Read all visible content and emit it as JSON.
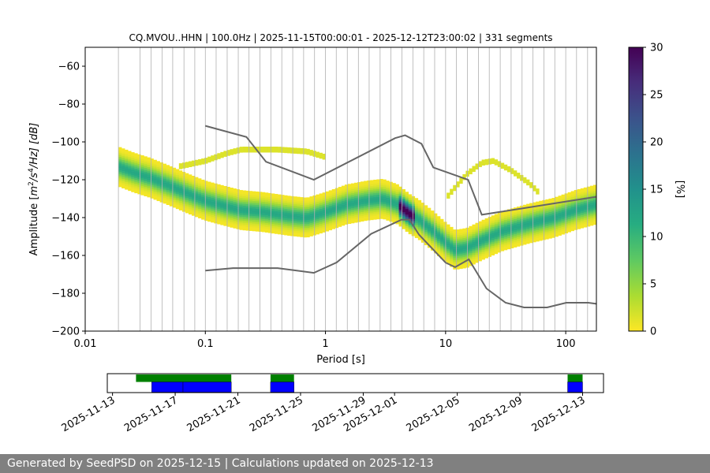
{
  "chart_data": [
    {
      "type": "heatmap",
      "title": "CQ.MVOU..HHN | 100.0Hz | 2025-11-15T00:00:01 - 2025-12-12T23:00:02 | 331 segments",
      "xlabel": "Period [s]",
      "ylabel_parts": {
        "prefix": "Amplitude [",
        "m": "m",
        "exp1": "2",
        "mid": "/s",
        "exp2": "4",
        "suffix": "/Hz] [dB]"
      },
      "xscale": "log",
      "xlim": [
        0.01,
        180
      ],
      "ylim": [
        -200,
        -50
      ],
      "x_ticks": [
        0.01,
        0.1,
        1,
        10,
        100
      ],
      "x_tick_labels": [
        "0.01",
        "0.1",
        "1",
        "10",
        "100"
      ],
      "y_ticks": [
        -200,
        -180,
        -160,
        -140,
        -120,
        -100,
        -80,
        -60
      ],
      "y_tick_labels": [
        "−200",
        "−180",
        "−160",
        "−140",
        "−120",
        "−100",
        "−80",
        "−60"
      ],
      "grid": "vertical lines at period bins",
      "grid_x": [
        0.0189,
        0.0286,
        0.0354,
        0.0436,
        0.0535,
        0.0664,
        0.0817,
        0.1,
        0.123,
        0.152,
        0.188,
        0.231,
        0.285,
        0.351,
        0.433,
        0.534,
        0.658,
        0.811,
        1.0,
        1.23,
        1.52,
        1.88,
        2.31,
        2.85,
        3.51,
        4.33,
        5.34,
        6.58,
        8.11,
        10,
        12.3,
        15.2,
        18.8,
        23.1,
        28.5,
        35.1,
        43.3,
        53.4,
        65.8,
        81.1,
        100,
        123,
        152
      ],
      "colorbar": {
        "label": "[%]",
        "min": 0,
        "max": 30,
        "ticks": [
          0,
          5,
          10,
          15,
          20,
          25,
          30
        ],
        "tick_labels": [
          "0",
          "5",
          "10",
          "15",
          "20",
          "25",
          "30"
        ],
        "colormap": "viridis"
      },
      "density": {
        "median": [
          {
            "x": 0.019,
            "y": -113
          },
          {
            "x": 0.025,
            "y": -116
          },
          {
            "x": 0.035,
            "y": -119
          },
          {
            "x": 0.05,
            "y": -123
          },
          {
            "x": 0.07,
            "y": -127
          },
          {
            "x": 0.1,
            "y": -131
          },
          {
            "x": 0.15,
            "y": -134
          },
          {
            "x": 0.2,
            "y": -136
          },
          {
            "x": 0.3,
            "y": -137
          },
          {
            "x": 0.5,
            "y": -139
          },
          {
            "x": 0.7,
            "y": -140
          },
          {
            "x": 1.0,
            "y": -137
          },
          {
            "x": 1.5,
            "y": -133
          },
          {
            "x": 2.2,
            "y": -131
          },
          {
            "x": 3.0,
            "y": -130
          },
          {
            "x": 4.0,
            "y": -133
          },
          {
            "x": 5.0,
            "y": -138
          },
          {
            "x": 6.0,
            "y": -141
          },
          {
            "x": 7.5,
            "y": -146
          },
          {
            "x": 10,
            "y": -153
          },
          {
            "x": 12,
            "y": -157
          },
          {
            "x": 15,
            "y": -156
          },
          {
            "x": 20,
            "y": -152
          },
          {
            "x": 30,
            "y": -147
          },
          {
            "x": 50,
            "y": -143
          },
          {
            "x": 80,
            "y": -140
          },
          {
            "x": 120,
            "y": -136
          },
          {
            "x": 180,
            "y": -133
          }
        ],
        "spread_below": 9,
        "spread_above": 9,
        "upper_branch": [
          {
            "x": 0.06,
            "y": -113
          },
          {
            "x": 0.1,
            "y": -110
          },
          {
            "x": 0.15,
            "y": -106
          },
          {
            "x": 0.2,
            "y": -104
          },
          {
            "x": 0.4,
            "y": -104
          },
          {
            "x": 0.7,
            "y": -105
          },
          {
            "x": 1.0,
            "y": -108
          }
        ],
        "upper_branch_2": [
          {
            "x": 10,
            "y": -130
          },
          {
            "x": 12,
            "y": -124
          },
          {
            "x": 15,
            "y": -117
          },
          {
            "x": 20,
            "y": -111
          },
          {
            "x": 25,
            "y": -110
          },
          {
            "x": 35,
            "y": -115
          },
          {
            "x": 50,
            "y": -122
          },
          {
            "x": 60,
            "y": -127
          }
        ],
        "peak": {
          "x": 4.7,
          "y": -137
        }
      },
      "reference_models": {
        "color": "#666666",
        "high_noise": [
          {
            "x": 0.1,
            "y": -91.5
          },
          {
            "x": 0.22,
            "y": -97.4
          },
          {
            "x": 0.32,
            "y": -110.5
          },
          {
            "x": 0.8,
            "y": -120
          },
          {
            "x": 3.8,
            "y": -98
          },
          {
            "x": 4.6,
            "y": -96.5
          },
          {
            "x": 6.3,
            "y": -101
          },
          {
            "x": 7.9,
            "y": -113.5
          },
          {
            "x": 15.4,
            "y": -120
          },
          {
            "x": 20,
            "y": -138.5
          },
          {
            "x": 180,
            "y": -129
          }
        ],
        "low_noise": [
          {
            "x": 0.1,
            "y": -168
          },
          {
            "x": 0.17,
            "y": -166.7
          },
          {
            "x": 0.4,
            "y": -166.7
          },
          {
            "x": 0.8,
            "y": -169.2
          },
          {
            "x": 1.24,
            "y": -163.7
          },
          {
            "x": 2.4,
            "y": -148.6
          },
          {
            "x": 4.3,
            "y": -141.1
          },
          {
            "x": 5.0,
            "y": -141.1
          },
          {
            "x": 6.0,
            "y": -149
          },
          {
            "x": 10,
            "y": -163.8
          },
          {
            "x": 12,
            "y": -166.2
          },
          {
            "x": 15.6,
            "y": -162.1
          },
          {
            "x": 21.9,
            "y": -177.5
          },
          {
            "x": 31.6,
            "y": -185
          },
          {
            "x": 45,
            "y": -187.5
          },
          {
            "x": 70,
            "y": -187.5
          },
          {
            "x": 101,
            "y": -185
          },
          {
            "x": 154,
            "y": -185
          },
          {
            "x": 180,
            "y": -185.6
          }
        ]
      }
    },
    {
      "type": "timeline",
      "x_range": [
        "2025-11-12T16:00",
        "2025-12-14T08:00"
      ],
      "x_ticks": [
        "2025-11-13",
        "2025-11-17",
        "2025-11-21",
        "2025-11-25",
        "2025-11-29",
        "2025-12-01",
        "2025-12-05",
        "2025-12-09",
        "2025-12-13"
      ],
      "x_tick_labels": [
        "2025-11-13",
        "2025-11-17",
        "2025-11-21",
        "2025-11-25",
        "2025-11-29",
        "2025-12-01",
        "2025-12-05",
        "2025-12-09",
        "2025-12-13"
      ],
      "rows": [
        {
          "color": "#008000",
          "segments": [
            [
              "2025-11-14T12:00",
              "2025-11-20T14:00"
            ],
            [
              "2025-11-23T02:00",
              "2025-11-24T14:00"
            ],
            [
              "2025-12-12T01:00",
              "2025-12-13T00:00"
            ]
          ]
        },
        {
          "color": "#0000ff",
          "segments": [
            [
              "2025-11-15T12:00",
              "2025-11-17T12:00"
            ],
            [
              "2025-11-17T12:00",
              "2025-11-20T14:00"
            ],
            [
              "2025-11-23T02:00",
              "2025-11-24T14:00"
            ],
            [
              "2025-12-12T01:00",
              "2025-12-13T00:00"
            ]
          ]
        }
      ]
    }
  ],
  "footer": {
    "text": "Generated by SeedPSD on 2025-12-15 | Calculations updated on 2025-12-13"
  }
}
